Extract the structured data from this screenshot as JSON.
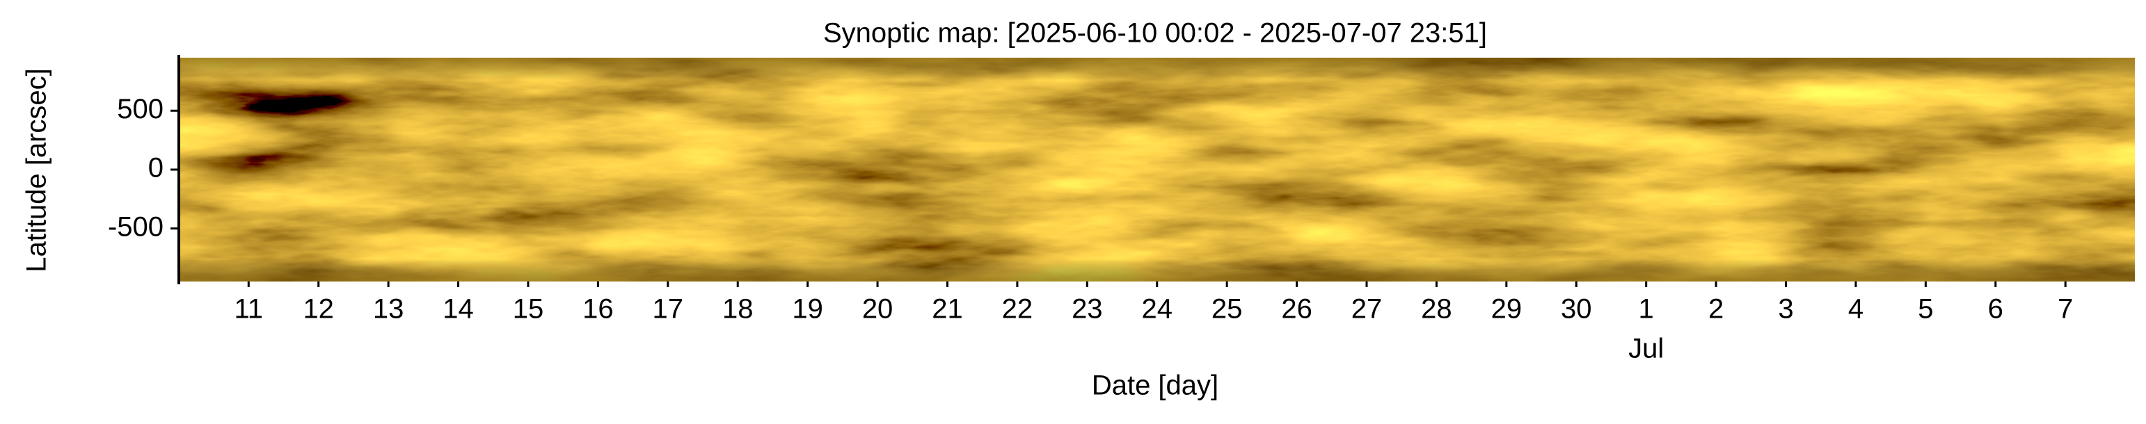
{
  "chart_data": {
    "type": "heatmap",
    "title": "Synoptic map: [2025-06-10 00:02 - 2025-07-07 23:51]",
    "x_label": "Date [day]",
    "y_label": "Latitude [arcsec]",
    "xlim": [
      "2025-06-10T00:02",
      "2025-07-07T23:51"
    ],
    "xticks": [
      {
        "value": "2025-06-11T00:00",
        "label": "11"
      },
      {
        "value": "2025-06-12T00:00",
        "label": "12"
      },
      {
        "value": "2025-06-13T00:00",
        "label": "13"
      },
      {
        "value": "2025-06-14T00:00",
        "label": "14"
      },
      {
        "value": "2025-06-15T00:00",
        "label": "15"
      },
      {
        "value": "2025-06-16T00:00",
        "label": "16"
      },
      {
        "value": "2025-06-17T00:00",
        "label": "17"
      },
      {
        "value": "2025-06-18T00:00",
        "label": "18"
      },
      {
        "value": "2025-06-19T00:00",
        "label": "19"
      },
      {
        "value": "2025-06-20T00:00",
        "label": "20"
      },
      {
        "value": "2025-06-21T00:00",
        "label": "21"
      },
      {
        "value": "2025-06-22T00:00",
        "label": "22"
      },
      {
        "value": "2025-06-23T00:00",
        "label": "23"
      },
      {
        "value": "2025-06-24T00:00",
        "label": "24"
      },
      {
        "value": "2025-06-25T00:00",
        "label": "25"
      },
      {
        "value": "2025-06-26T00:00",
        "label": "26"
      },
      {
        "value": "2025-06-27T00:00",
        "label": "27"
      },
      {
        "value": "2025-06-28T00:00",
        "label": "28"
      },
      {
        "value": "2025-06-29T00:00",
        "label": "29"
      },
      {
        "value": "2025-06-30T00:00",
        "label": "30"
      },
      {
        "value": "2025-07-01T00:00",
        "label": "1"
      },
      {
        "value": "2025-07-02T00:00",
        "label": "2"
      },
      {
        "value": "2025-07-03T00:00",
        "label": "3"
      },
      {
        "value": "2025-07-04T00:00",
        "label": "4"
      },
      {
        "value": "2025-07-05T00:00",
        "label": "5"
      },
      {
        "value": "2025-07-06T00:00",
        "label": "6"
      },
      {
        "value": "2025-07-07T00:00",
        "label": "7"
      }
    ],
    "x_month_labels": [
      {
        "value": "2025-07-01T00:00",
        "label": "Jul"
      }
    ],
    "ylim": [
      -950,
      950
    ],
    "yticks": [
      -500,
      0,
      500
    ]
  }
}
